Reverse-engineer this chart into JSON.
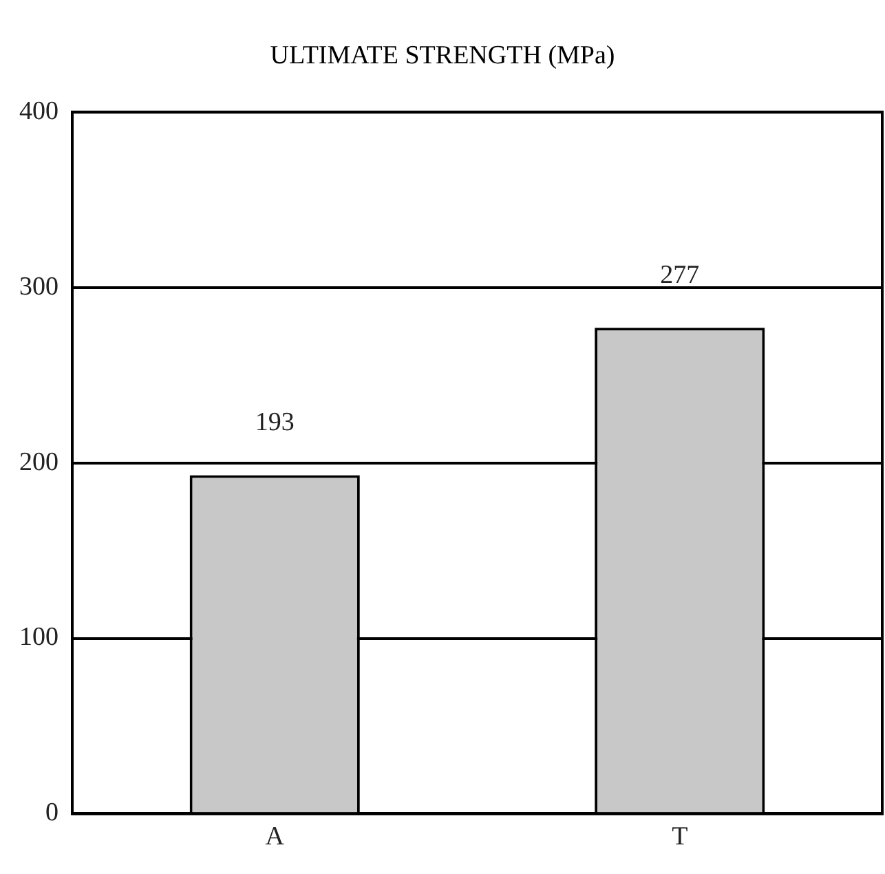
{
  "chart_data": {
    "type": "bar",
    "title": "ULTIMATE STRENGTH (MPa)",
    "categories": [
      "A",
      "T"
    ],
    "values": [
      193,
      277
    ],
    "color": "#c8c8c8",
    "ylim": [
      0,
      400
    ],
    "yticks": [
      0,
      100,
      200,
      300,
      400
    ],
    "grid": "y",
    "data_labels": true
  }
}
